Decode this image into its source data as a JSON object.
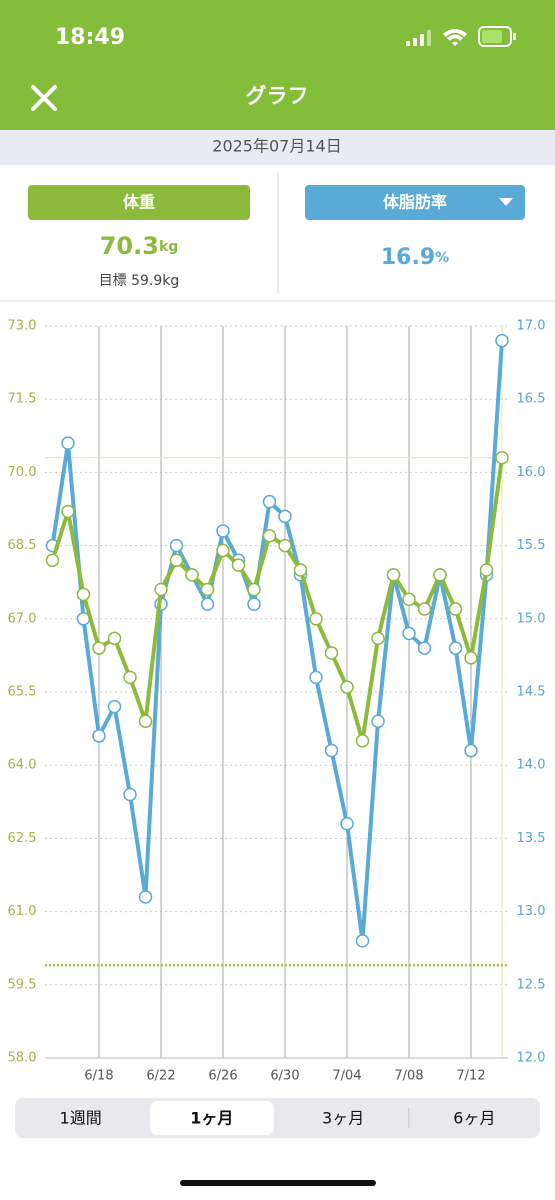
{
  "status_bar": {
    "time": "18:49"
  },
  "nav": {
    "title": "グラフ"
  },
  "date": "2025年07月14日",
  "stats": {
    "weight": {
      "value": "70.3",
      "unit": "kg",
      "goal": "目標 59.9kg"
    },
    "body_fat": {
      "value": "16.9",
      "unit": "%"
    }
  },
  "chart_data": {
    "type": "line",
    "categories": [
      null,
      null,
      null,
      "6/18",
      null,
      null,
      null,
      "6/22",
      null,
      null,
      null,
      "6/26",
      null,
      null,
      null,
      "6/30",
      null,
      null,
      null,
      "7/04",
      null,
      null,
      null,
      "7/08",
      null,
      null,
      null,
      "7/12",
      null,
      null
    ],
    "series": [
      {
        "name": "体重",
        "color": "#8cbb3c",
        "axis": "y",
        "values": [
          68.2,
          69.2,
          67.5,
          66.4,
          66.6,
          65.8,
          64.9,
          67.6,
          68.2,
          67.9,
          67.6,
          68.4,
          68.1,
          67.6,
          68.7,
          68.5,
          68.0,
          67.0,
          66.3,
          65.6,
          64.5,
          66.6,
          67.9,
          67.4,
          67.2,
          67.9,
          67.2,
          66.2,
          68.0,
          70.3
        ]
      },
      {
        "name": "体脂肪率",
        "color": "#5aaad8",
        "axis": "y2",
        "values": [
          15.5,
          16.2,
          15.0,
          14.2,
          14.4,
          13.8,
          13.1,
          15.1,
          15.5,
          15.3,
          15.1,
          15.6,
          15.4,
          15.1,
          15.8,
          15.7,
          15.3,
          14.6,
          14.1,
          13.6,
          12.8,
          14.3,
          15.3,
          14.9,
          14.8,
          15.3,
          14.8,
          14.1,
          15.3,
          16.9
        ]
      }
    ],
    "goal": 59.9,
    "ylim": [
      58,
      73
    ],
    "yticks": [
      {
        "value": 58,
        "label": "58.0"
      },
      59.5,
      {
        "value": 61,
        "label": "61.0"
      },
      62.5,
      {
        "value": 64,
        "label": "64.0"
      },
      65.5,
      {
        "value": 67,
        "label": "67.0"
      },
      68.5,
      {
        "value": 70,
        "label": "70.0"
      },
      71.5,
      {
        "value": 73,
        "label": "73.0"
      }
    ],
    "y2lim": [
      12,
      17
    ],
    "y2ticks": [
      {
        "value": 12,
        "label": "12.0"
      },
      12.5,
      {
        "value": 13,
        "label": "13.0"
      },
      13.5,
      {
        "value": 14,
        "label": "14.0"
      },
      14.5,
      {
        "value": 15,
        "label": "15.0"
      },
      15.5,
      {
        "value": 16,
        "label": "16.0"
      },
      16.5,
      {
        "value": 17,
        "label": "17.0"
      }
    ],
    "grid": true
  },
  "tabs": {
    "items": [
      "1週間",
      "1ヶ月",
      "3ヶ月",
      "6ヶ月"
    ],
    "selected": 1
  }
}
